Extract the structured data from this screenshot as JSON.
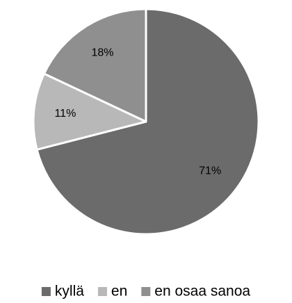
{
  "chart_data": {
    "type": "pie",
    "categories": [
      "kyllä",
      "en",
      "en osaa sanoa"
    ],
    "values": [
      71,
      11,
      18
    ],
    "value_labels": [
      "71%",
      "11%",
      "18%"
    ],
    "colors": [
      "#6b6b6b",
      "#b8b8b8",
      "#8f8f8f"
    ],
    "legend": "bottom"
  }
}
